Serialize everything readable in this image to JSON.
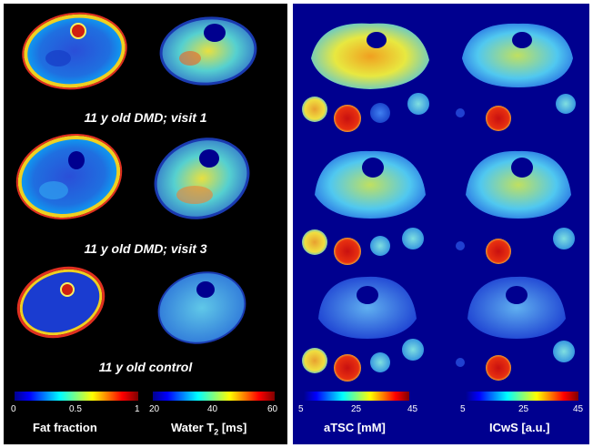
{
  "colors": {
    "left_background": "#000000",
    "right_background": "#00008f",
    "divider": "#ffffff"
  },
  "captions": {
    "row1": "11 y old DMD; visit 1",
    "row2": "11 y old DMD; visit 3",
    "row3": "11 y old control"
  },
  "colorbars": {
    "fat_fraction": {
      "label": "Fat fraction",
      "ticks": [
        "0",
        "0.5",
        "1"
      ],
      "colormap": "jet"
    },
    "water_t2": {
      "label_main": "Water T",
      "label_sub": "2",
      "label_unit": " [ms]",
      "ticks": [
        "20",
        "40",
        "60"
      ],
      "colormap": "jet"
    },
    "atsc": {
      "label": "aTSC [mM]",
      "ticks": [
        "5",
        "25",
        "45"
      ],
      "colormap": "jet"
    },
    "icws": {
      "label": "ICwS [a.u.]",
      "ticks": [
        "5",
        "25",
        "45"
      ],
      "colormap": "jet"
    }
  }
}
